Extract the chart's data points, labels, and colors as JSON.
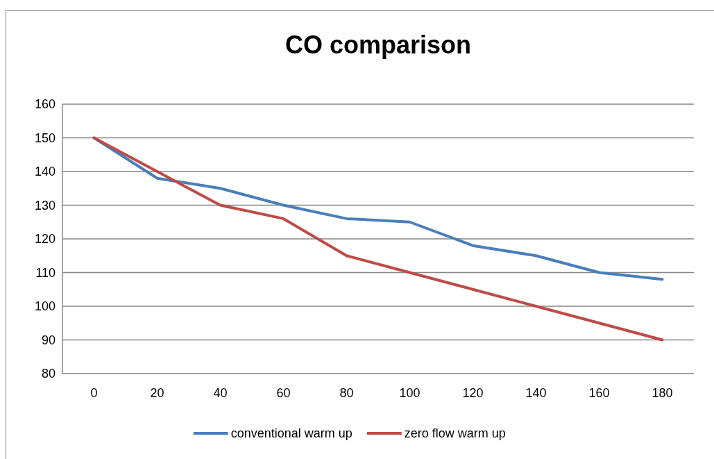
{
  "chart_data": {
    "type": "line",
    "title": "CO comparison",
    "categories": [
      "0",
      "20",
      "40",
      "60",
      "80",
      "100",
      "120",
      "140",
      "160",
      "180"
    ],
    "series": [
      {
        "name": "conventional warm up",
        "color": "#4a7ebb",
        "values": [
          150,
          138,
          135,
          130,
          126,
          125,
          118,
          115,
          110,
          108
        ]
      },
      {
        "name": "zero flow warm up",
        "color": "#be4b48",
        "values": [
          150,
          140,
          130,
          126,
          115,
          110,
          105,
          100,
          95,
          90
        ]
      }
    ],
    "ylim": [
      80,
      160
    ],
    "yticks": [
      80,
      90,
      100,
      110,
      120,
      130,
      140,
      150,
      160
    ],
    "grid": "y",
    "legend": "bottom",
    "marker": "none",
    "line_style": "solid"
  }
}
